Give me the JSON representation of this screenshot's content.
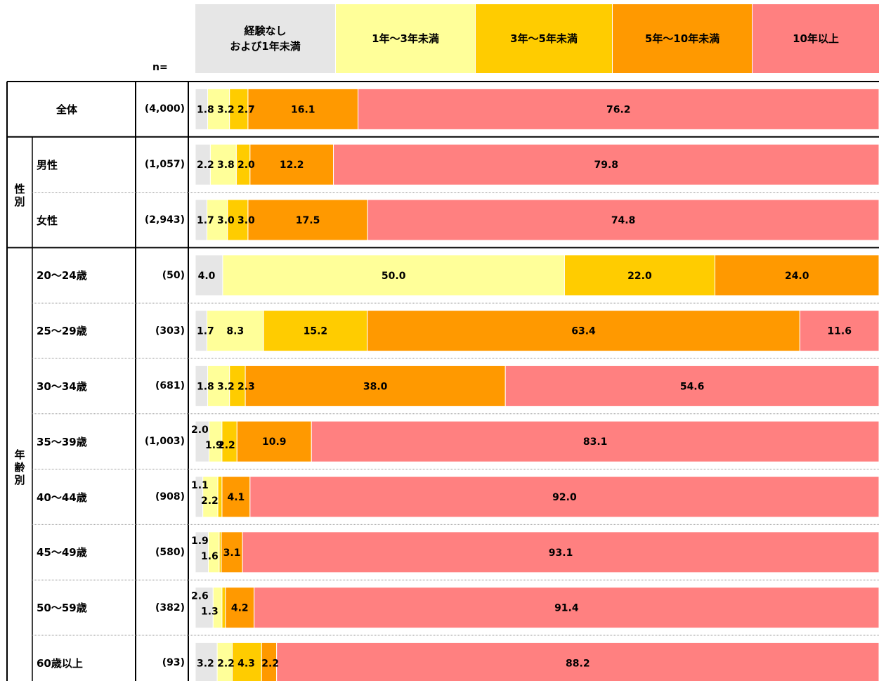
{
  "chart_data": {
    "type": "bar",
    "orientation": "horizontal-stacked-100",
    "n_header": "n=",
    "legend": [
      {
        "label": "経験なし\nおよび1年未満",
        "color": "#e6e6e6"
      },
      {
        "label": "1年～3年未満",
        "color": "#ffff99"
      },
      {
        "label": "3年～5年未満",
        "color": "#ffcc00"
      },
      {
        "label": "5年～10年未満",
        "color": "#ff9900"
      },
      {
        "label": "10年以上",
        "color": "#ff8080"
      }
    ],
    "groups": [
      {
        "label": "",
        "rows": [
          0
        ]
      },
      {
        "label": "性\n別",
        "rows": [
          1,
          2
        ]
      },
      {
        "label": "年\n齢\n別",
        "rows": [
          3,
          4,
          5,
          6,
          7,
          8,
          9,
          10
        ]
      }
    ],
    "rows": [
      {
        "label": "全体",
        "n": "(4,000)",
        "values": [
          1.8,
          3.2,
          2.7,
          16.1,
          76.2
        ]
      },
      {
        "label": "男性",
        "n": "(1,057)",
        "values": [
          2.2,
          3.8,
          2.0,
          12.2,
          79.8
        ]
      },
      {
        "label": "女性",
        "n": "(2,943)",
        "values": [
          1.7,
          3.0,
          3.0,
          17.5,
          74.8
        ]
      },
      {
        "label": "20～24歳",
        "n": "(50)",
        "values": [
          4.0,
          50.0,
          22.0,
          24.0,
          0.0
        ]
      },
      {
        "label": "25～29歳",
        "n": "(303)",
        "values": [
          1.7,
          8.3,
          15.2,
          63.4,
          11.6
        ]
      },
      {
        "label": "30～34歳",
        "n": "(681)",
        "values": [
          1.8,
          3.2,
          2.3,
          38.0,
          54.6
        ]
      },
      {
        "label": "35～39歳",
        "n": "(1,003)",
        "values": [
          2.0,
          1.9,
          2.2,
          10.9,
          83.1
        ]
      },
      {
        "label": "40～44歳",
        "n": "(908)",
        "values": [
          1.1,
          2.2,
          0.6,
          4.1,
          92.0
        ]
      },
      {
        "label": "45～49歳",
        "n": "(580)",
        "values": [
          1.9,
          1.6,
          0.3,
          3.1,
          93.1
        ]
      },
      {
        "label": "50～59歳",
        "n": "(382)",
        "values": [
          2.6,
          1.3,
          0.5,
          4.2,
          91.4
        ]
      },
      {
        "label": "60歳以上",
        "n": "(93)",
        "values": [
          3.2,
          2.2,
          4.3,
          2.2,
          88.2
        ]
      }
    ],
    "label_layout": [
      [
        "inline",
        "inline",
        "inline",
        "center",
        "center"
      ],
      [
        "inline",
        "inline",
        "inline",
        "center",
        "center"
      ],
      [
        "inline",
        "inline",
        "inline",
        "center",
        "center"
      ],
      [
        "center",
        "center",
        "center",
        "center",
        "none"
      ],
      [
        "inline",
        "center",
        "center",
        "center",
        "center"
      ],
      [
        "inline",
        "inline",
        "inline",
        "center",
        "center"
      ],
      [
        "up",
        "down",
        "down",
        "center",
        "center"
      ],
      [
        "up",
        "down",
        "none",
        "center",
        "center"
      ],
      [
        "up",
        "down",
        "none",
        "center",
        "center"
      ],
      [
        "up",
        "down",
        "none",
        "center",
        "center"
      ],
      [
        "inline",
        "inline",
        "inline",
        "inline",
        "center"
      ]
    ]
  }
}
